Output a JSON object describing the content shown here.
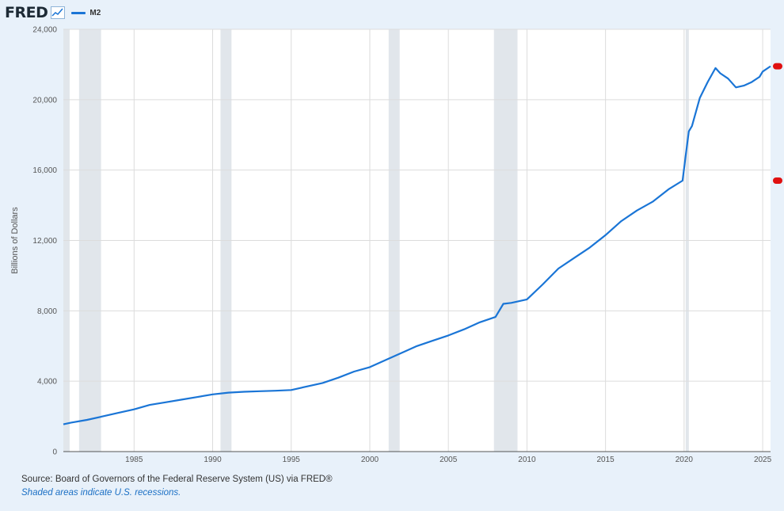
{
  "header": {
    "logo_text": "FRED",
    "logo_icon": "line-chart-icon",
    "legend_label": "M2"
  },
  "colors": {
    "background": "#e8f1fa",
    "plot_background": "#ffffff",
    "series": "#1a75d6",
    "recession_band": "#e1e6eb",
    "gridline": "#dcdcdc",
    "marker": "#e01010"
  },
  "chart_data": {
    "type": "line",
    "ylabel": "Billions of Dollars",
    "xlim": [
      1980.5,
      2025.5
    ],
    "ylim": [
      0,
      24000
    ],
    "y_ticks": [
      0,
      4000,
      8000,
      12000,
      16000,
      20000,
      24000
    ],
    "y_tick_labels": [
      "0",
      "4,000",
      "8,000",
      "12,000",
      "16,000",
      "20,000",
      "24,000"
    ],
    "x_ticks": [
      1985,
      1990,
      1995,
      2000,
      2005,
      2010,
      2015,
      2020,
      2025
    ],
    "x_tick_labels": [
      "1985",
      "1990",
      "1995",
      "2000",
      "2005",
      "2010",
      "2015",
      "2020",
      "2025"
    ],
    "grid": true,
    "recessions": [
      [
        1980.5,
        1980.9
      ],
      [
        1981.5,
        1982.9
      ],
      [
        1990.5,
        1991.2
      ],
      [
        2001.2,
        2001.9
      ],
      [
        2007.9,
        2009.4
      ],
      [
        2020.1,
        2020.3
      ]
    ],
    "series": [
      {
        "name": "M2",
        "x": [
          1980.5,
          1981,
          1982,
          1983,
          1984,
          1985,
          1986,
          1987,
          1988,
          1989,
          1990,
          1991,
          1992,
          1993,
          1994,
          1995,
          1996,
          1997,
          1998,
          1999,
          2000,
          2001,
          2002,
          2003,
          2004,
          2005,
          2006,
          2007,
          2008,
          2008.5,
          2009,
          2010,
          2011,
          2012,
          2013,
          2014,
          2015,
          2016,
          2017,
          2018,
          2019,
          2019.9,
          2020.1,
          2020.3,
          2020.5,
          2021,
          2021.5,
          2022,
          2022.3,
          2022.8,
          2023.3,
          2023.8,
          2024.3,
          2024.8,
          2025,
          2025.5
        ],
        "values": [
          1550,
          1650,
          1800,
          2000,
          2200,
          2400,
          2650,
          2800,
          2950,
          3100,
          3250,
          3350,
          3400,
          3430,
          3460,
          3500,
          3700,
          3900,
          4200,
          4550,
          4800,
          5200,
          5600,
          6000,
          6300,
          6600,
          6950,
          7350,
          7650,
          8400,
          8450,
          8650,
          9500,
          10400,
          11000,
          11600,
          12300,
          13100,
          13700,
          14200,
          14900,
          15400,
          16800,
          18200,
          18500,
          20100,
          21000,
          21800,
          21500,
          21200,
          20700,
          20800,
          21000,
          21300,
          21600,
          21900
        ]
      }
    ],
    "highlight_markers": [
      {
        "value": 21900
      },
      {
        "value": 15400
      }
    ]
  },
  "footer": {
    "source": "Source: Board of Governors of the Federal Reserve System (US) via FRED®",
    "note": "Shaded areas indicate U.S. recessions."
  }
}
